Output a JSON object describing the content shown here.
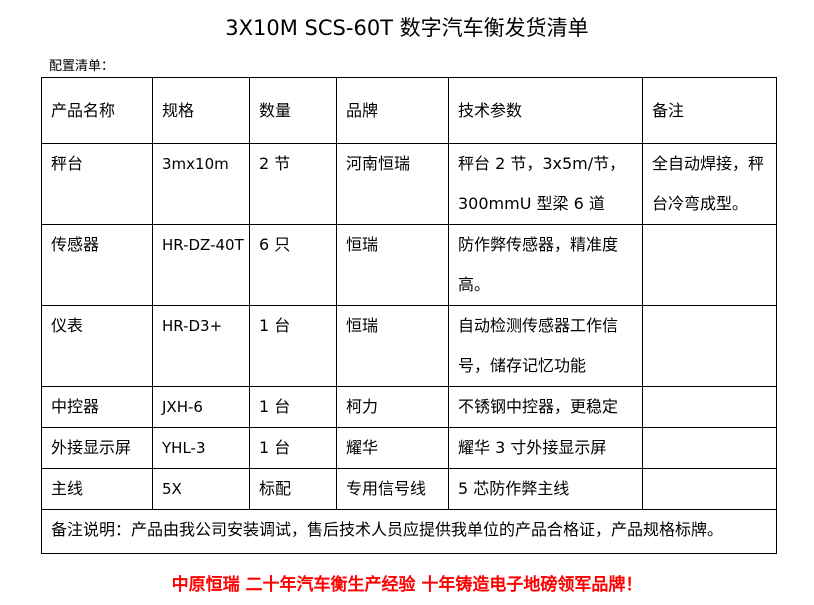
{
  "title": "3X10M SCS-60T 数字汽车衡发货清单",
  "subtitle": "配置清单：",
  "headers": [
    "产品名称",
    "规格",
    "数量",
    "品牌",
    "技术参数",
    "备注"
  ],
  "rows": [
    [
      "秤台",
      "3mx10m",
      "2 节",
      "河南恒瑞",
      "秤台 2 节，3x5m/节，300mmU 型梁 6 道",
      "全自动焊接，秤台冷弯成型。"
    ],
    [
      "传感器",
      "HR-DZ-40T",
      "6 只",
      "恒瑞",
      "防作弊传感器，精准度高。",
      ""
    ],
    [
      "仪表",
      "HR-D3+",
      "1 台",
      "恒瑞",
      "自动检测传感器工作信号，储存记忆功能",
      ""
    ],
    [
      "中控器",
      "JXH-6",
      "1 台",
      "柯力",
      "不锈钢中控器，更稳定",
      ""
    ],
    [
      "外接显示屏",
      "YHL-3",
      "1 台",
      "耀华",
      "耀华 3 寸外接显示屏",
      ""
    ],
    [
      "主线",
      "5X",
      "标配",
      "专用信号线",
      "5 芯防作弊主线",
      ""
    ]
  ],
  "note": "备注说明：产品由我公司安装调试，售后技术人员应提供我单位的产品合格证，产品规格标牌。",
  "footer": "中原恒瑞  二十年汽车衡生产经验  十年铸造电子地磅领军品牌！",
  "colors": {
    "footer": "#ff0000"
  }
}
